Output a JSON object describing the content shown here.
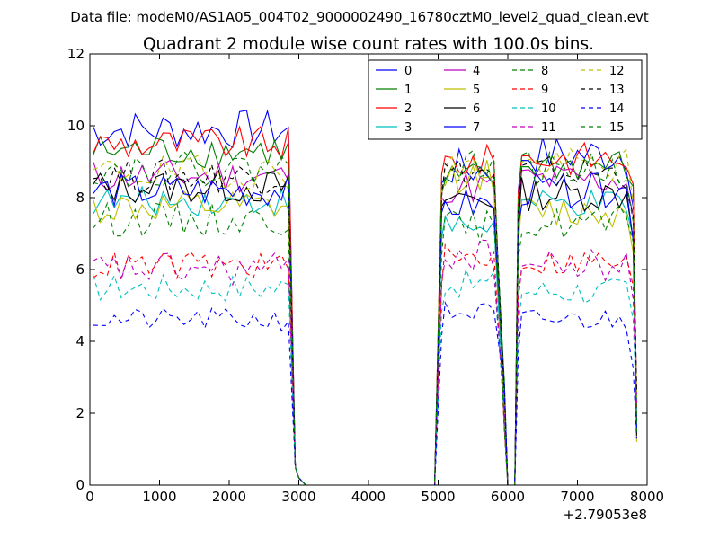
{
  "header": {
    "datafile": "Data file: modeM0/AS1A05_004T02_9000002490_16780cztM0_level2_quad_clean.evt"
  },
  "chart_data": {
    "type": "line",
    "title": "Quadrant 2 module wise count rates with 100.0s bins.",
    "xlabel": "",
    "ylabel": "",
    "xlim": [
      0,
      8000
    ],
    "ylim": [
      0,
      12
    ],
    "x_offset_label": "+2.79053e8",
    "xticks": [
      0,
      1000,
      2000,
      3000,
      4000,
      5000,
      6000,
      7000,
      8000
    ],
    "yticks": [
      0,
      2,
      4,
      6,
      8,
      10,
      12
    ],
    "xtick_labels": [
      "0",
      "1000",
      "2000",
      "3000",
      "4000",
      "5000",
      "6000",
      "7000",
      "8000"
    ],
    "ytick_labels": [
      "0",
      "2",
      "4",
      "6",
      "8",
      "10",
      "12"
    ],
    "legend_position": "top-right",
    "bins": {
      "seg1_x": [
        50,
        2900
      ],
      "seg1_fall": [
        [
          2950,
          0.5
        ],
        [
          3000,
          0.2
        ],
        [
          3100,
          0
        ]
      ],
      "gap": [
        3100,
        4950
      ],
      "seg2_rise": [
        [
          4950,
          0
        ],
        [
          5050,
          7.5
        ]
      ],
      "seg2_x": [
        5100,
        5850
      ],
      "dip1": [
        [
          5950,
          1.5
        ],
        [
          6000,
          0
        ],
        [
          6100,
          0
        ]
      ],
      "seg3_x": [
        6200,
        7750
      ],
      "seg3_fall": [
        [
          7800,
          6.5
        ],
        [
          7850,
          1.2
        ]
      ],
      "step": 100
    },
    "series": [
      {
        "name": "0",
        "color": "#0000ff",
        "dash": "solid",
        "base": [
          9.9,
          8.8,
          9.2
        ],
        "amp": 0.35
      },
      {
        "name": "1",
        "color": "#008000",
        "dash": "solid",
        "base": [
          9.3,
          8.5,
          8.9
        ],
        "amp": 0.3
      },
      {
        "name": "2",
        "color": "#ff0000",
        "dash": "solid",
        "base": [
          9.5,
          9.0,
          9.1
        ],
        "amp": 0.3
      },
      {
        "name": "3",
        "color": "#00bfbf",
        "dash": "solid",
        "base": [
          7.9,
          7.2,
          7.8
        ],
        "amp": 0.25
      },
      {
        "name": "4",
        "color": "#bf00bf",
        "dash": "solid",
        "base": [
          8.6,
          8.3,
          8.5
        ],
        "amp": 0.3
      },
      {
        "name": "5",
        "color": "#bfbf00",
        "dash": "solid",
        "base": [
          7.7,
          8.6,
          7.6
        ],
        "amp": 0.3
      },
      {
        "name": "6",
        "color": "#000000",
        "dash": "solid",
        "base": [
          8.3,
          8.0,
          8.1
        ],
        "amp": 0.3
      },
      {
        "name": "7",
        "color": "#0000ff",
        "dash": "solid",
        "base": [
          8.2,
          7.8,
          8.2
        ],
        "amp": 0.3
      },
      {
        "name": "8",
        "color": "#008000",
        "dash": "dashed",
        "base": [
          7.4,
          7.2,
          7.3
        ],
        "amp": 0.3
      },
      {
        "name": "9",
        "color": "#ff0000",
        "dash": "dashed",
        "base": [
          6.1,
          6.3,
          6.2
        ],
        "amp": 0.25
      },
      {
        "name": "10",
        "color": "#00bfbf",
        "dash": "dashed",
        "base": [
          5.5,
          5.6,
          5.4
        ],
        "amp": 0.25
      },
      {
        "name": "11",
        "color": "#bf00bf",
        "dash": "dashed",
        "base": [
          6.0,
          6.4,
          6.1
        ],
        "amp": 0.3
      },
      {
        "name": "12",
        "color": "#bfbf00",
        "dash": "dashed",
        "base": [
          8.7,
          8.8,
          8.9
        ],
        "amp": 0.3
      },
      {
        "name": "13",
        "color": "#000000",
        "dash": "dashed",
        "base": [
          8.6,
          8.7,
          8.7
        ],
        "amp": 0.3
      },
      {
        "name": "14",
        "color": "#0000ff",
        "dash": "dashed",
        "base": [
          4.6,
          4.8,
          4.6
        ],
        "amp": 0.2
      },
      {
        "name": "15",
        "color": "#008000",
        "dash": "dashed",
        "base": [
          8.8,
          8.9,
          8.8
        ],
        "amp": 0.3
      }
    ]
  }
}
